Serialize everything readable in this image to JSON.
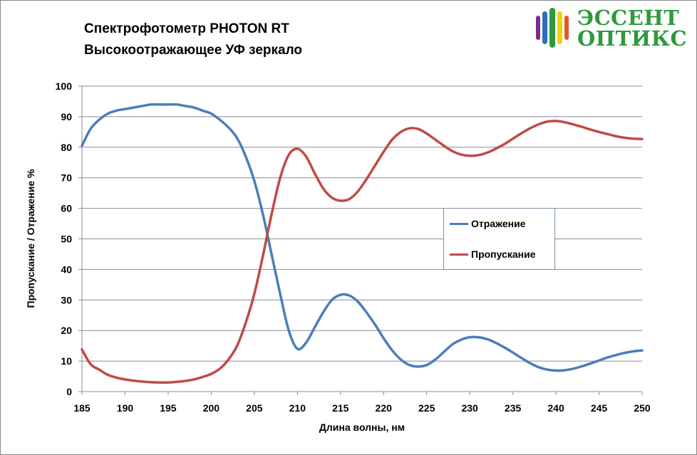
{
  "chart_data": {
    "type": "line",
    "title": "Спектрофотометр PHOTON RT",
    "subtitle": "Высокоотражающее УФ зеркало",
    "xlabel": "Длина волны, нм",
    "ylabel": "Пропускание / Отражение %",
    "xlim": [
      185,
      250
    ],
    "ylim": [
      0,
      100
    ],
    "xticks": [
      185,
      190,
      195,
      200,
      205,
      210,
      215,
      220,
      225,
      230,
      235,
      240,
      245,
      250
    ],
    "yticks": [
      0,
      10,
      20,
      30,
      40,
      50,
      60,
      70,
      80,
      90,
      100
    ],
    "grid": "horizontal",
    "legend_position": "center-right",
    "series": [
      {
        "name": "Отражение",
        "color": "#4a7ebb",
        "x": [
          185,
          186,
          187,
          188,
          189,
          190,
          191,
          192,
          193,
          194,
          195,
          196,
          197,
          198,
          199,
          200,
          201,
          202,
          203,
          204,
          205,
          206,
          207,
          208,
          209,
          210,
          211,
          212,
          213,
          214,
          215,
          216,
          217,
          218,
          219,
          220,
          221,
          222,
          223,
          224,
          225,
          226,
          227,
          228,
          229,
          230,
          231,
          232,
          233,
          234,
          235,
          236,
          237,
          238,
          239,
          240,
          241,
          242,
          243,
          244,
          245,
          246,
          247,
          248,
          249,
          250
        ],
        "values": [
          80.5,
          86,
          89,
          91,
          92,
          92.5,
          93,
          93.5,
          94,
          94,
          94,
          94,
          93.5,
          93,
          92,
          91,
          89,
          86.5,
          83,
          77,
          69,
          58,
          45,
          32,
          20,
          14,
          16,
          21,
          26,
          30,
          31.7,
          31.5,
          29.5,
          26,
          22,
          17.5,
          13.5,
          10.5,
          8.7,
          8.2,
          8.7,
          10.5,
          13,
          15.5,
          17,
          17.8,
          17.8,
          17.2,
          16,
          14.5,
          12.8,
          11,
          9.3,
          8,
          7.2,
          6.9,
          7,
          7.5,
          8.3,
          9.2,
          10.2,
          11.2,
          12,
          12.7,
          13.2,
          13.5
        ]
      },
      {
        "name": "Пропускание",
        "color": "#be4b48",
        "x": [
          185,
          186,
          187,
          188,
          189,
          190,
          191,
          192,
          193,
          194,
          195,
          196,
          197,
          198,
          199,
          200,
          201,
          202,
          203,
          204,
          205,
          206,
          207,
          208,
          209,
          210,
          211,
          212,
          213,
          214,
          215,
          216,
          217,
          218,
          219,
          220,
          221,
          222,
          223,
          224,
          225,
          226,
          227,
          228,
          229,
          230,
          231,
          232,
          233,
          234,
          235,
          236,
          237,
          238,
          239,
          240,
          241,
          242,
          243,
          244,
          245,
          246,
          247,
          248,
          249,
          250
        ],
        "values": [
          13.8,
          9,
          7.2,
          5.5,
          4.6,
          4,
          3.6,
          3.3,
          3.1,
          3,
          3,
          3.2,
          3.5,
          4,
          4.8,
          5.8,
          7.5,
          10.5,
          15,
          22.5,
          32,
          44.5,
          58,
          70,
          77.5,
          79.5,
          77,
          71.5,
          66.5,
          63.5,
          62.5,
          63,
          65.5,
          69.5,
          74,
          78.5,
          82.5,
          85,
          86.2,
          86,
          84.5,
          82.5,
          80.5,
          78.7,
          77.6,
          77.2,
          77.4,
          78.2,
          79.5,
          81,
          82.8,
          84.6,
          86.2,
          87.5,
          88.4,
          88.6,
          88.2,
          87.5,
          86.7,
          85.8,
          85,
          84.3,
          83.6,
          83.1,
          82.8,
          82.7
        ]
      }
    ]
  },
  "logo": {
    "line1": "ЭССЕНТ",
    "line2": "ОПТИКС",
    "text_color": "#2e9a3c",
    "stripe_colors": [
      "#7b2b8e",
      "#2e6fb8",
      "#2e9a3c",
      "#f2d20f",
      "#e4572e"
    ]
  }
}
